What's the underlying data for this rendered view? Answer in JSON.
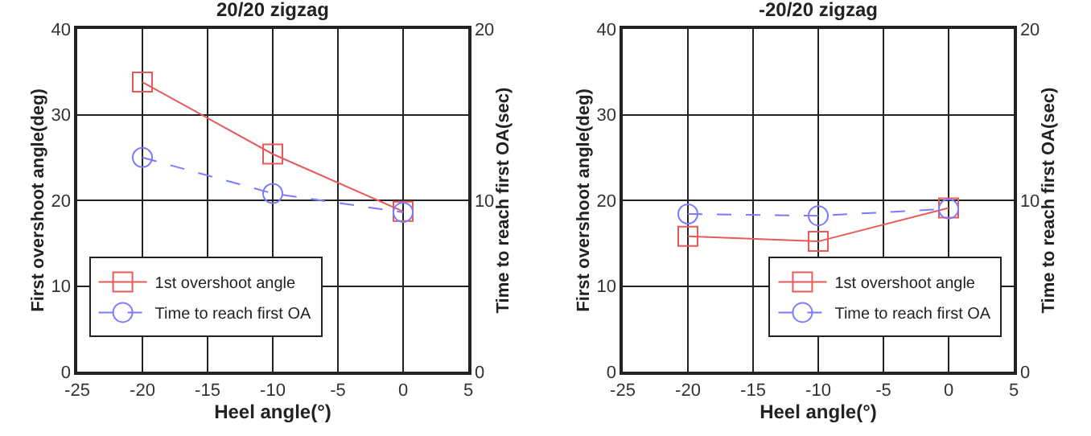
{
  "chart_data": [
    {
      "type": "line",
      "title": "20/20 zigzag",
      "xlabel": "Heel angle(°)",
      "ylabel": "First overshoot angle(deg)",
      "y2label": "Time to reach first OA(sec)",
      "x": [
        -20,
        -10,
        0
      ],
      "xlim": [
        -25,
        5
      ],
      "xticks": [
        -25,
        -20,
        -15,
        -10,
        -5,
        0,
        5
      ],
      "ylim": [
        0,
        40
      ],
      "yticks": [
        0,
        10,
        20,
        30,
        40
      ],
      "y2lim": [
        0,
        20
      ],
      "y2ticks": [
        0,
        10,
        20
      ],
      "grid": true,
      "legend": "bottom left",
      "series": [
        {
          "name": "1st overshoot angle",
          "color": "#e85a5a",
          "values": [
            33.8,
            25.4,
            18.7
          ],
          "marker": "square",
          "line_style": "solid"
        },
        {
          "name": "Time to reach first OA",
          "color": "#7a7aff",
          "values": [
            12.5,
            10.4,
            9.3
          ],
          "marker": "circle",
          "line_style": "dashed",
          "axis": "y2"
        }
      ]
    },
    {
      "type": "line",
      "title": "-20/20 zigzag",
      "xlabel": "Heel angle(°)",
      "ylabel": "First overshoot angle(deg)",
      "y2label": "Time to reach first OA(sec)",
      "x": [
        -20,
        -10,
        0
      ],
      "xlim": [
        -25,
        5
      ],
      "xticks": [
        -25,
        -20,
        -15,
        -10,
        -5,
        0,
        5
      ],
      "ylim": [
        0,
        40
      ],
      "yticks": [
        0,
        10,
        20,
        30,
        40
      ],
      "y2lim": [
        0,
        20
      ],
      "y2ticks": [
        0,
        10,
        20
      ],
      "grid": true,
      "legend": "bottom right",
      "series": [
        {
          "name": "1st overshoot angle",
          "color": "#e85a5a",
          "values": [
            15.8,
            15.2,
            19.1
          ],
          "marker": "square",
          "line_style": "solid"
        },
        {
          "name": "Time to reach first OA",
          "color": "#7a7aff",
          "values": [
            9.2,
            9.1,
            9.5
          ],
          "marker": "circle",
          "line_style": "dashed",
          "axis": "y2"
        }
      ]
    }
  ]
}
